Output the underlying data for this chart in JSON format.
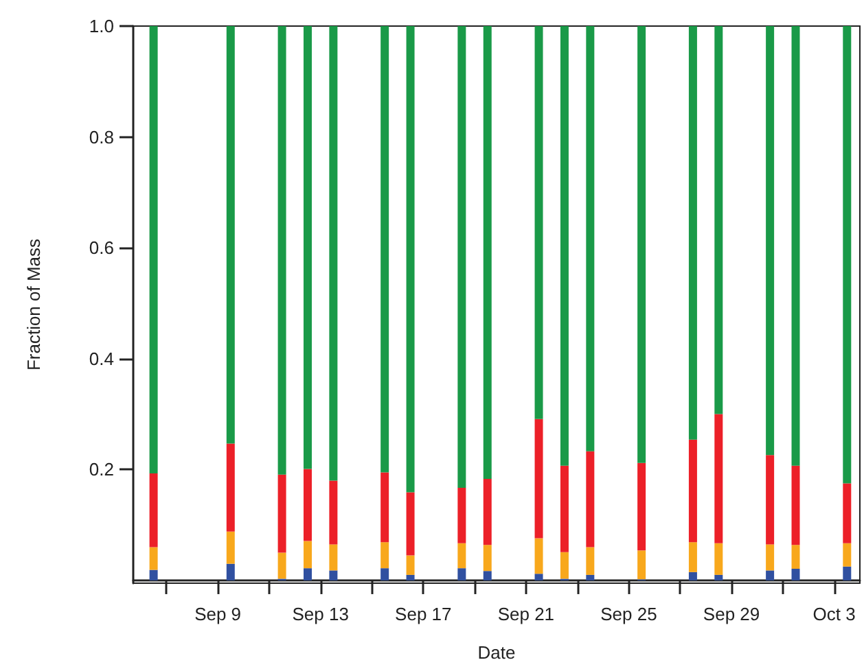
{
  "chart_data": {
    "type": "bar",
    "stacked": true,
    "xlabel": "Date",
    "ylabel": "Fraction of Mass",
    "x": [
      "--09-06T12:00",
      "--09-09T12:00",
      "--09-11T12:00",
      "--09-12T12:00",
      "--09-13T12:00",
      "--09-15T12:00",
      "--09-16T12:00",
      "--09-18T12:00",
      "--09-19T12:00",
      "--09-21T12:00",
      "--09-22T12:00",
      "--09-23T12:00",
      "--09-25T12:00",
      "--09-27T12:00",
      "--09-28T12:00",
      "--09-30T12:00",
      "--10-01T12:00",
      "--10-03T12:00"
    ],
    "series": [
      {
        "color": "#3050a0",
        "values": [
          0.019,
          0.03,
          0.003,
          0.022,
          0.018,
          0.022,
          0.01,
          0.022,
          0.017,
          0.012,
          0.003,
          0.01,
          0.002,
          0.015,
          0.01,
          0.018,
          0.021,
          0.025
        ]
      },
      {
        "color": "#f8a81c",
        "values": [
          0.041,
          0.058,
          0.047,
          0.049,
          0.047,
          0.047,
          0.035,
          0.045,
          0.047,
          0.064,
          0.048,
          0.05,
          0.052,
          0.054,
          0.057,
          0.047,
          0.043,
          0.042
        ]
      },
      {
        "color": "#ec2028",
        "values": [
          0.133,
          0.159,
          0.141,
          0.13,
          0.115,
          0.126,
          0.114,
          0.1,
          0.119,
          0.215,
          0.156,
          0.173,
          0.158,
          0.185,
          0.233,
          0.161,
          0.143,
          0.108
        ]
      },
      {
        "color": "#1a9a48",
        "values": [
          0.807,
          0.753,
          0.809,
          0.799,
          0.82,
          0.805,
          0.841,
          0.833,
          0.817,
          0.709,
          0.793,
          0.767,
          0.788,
          0.746,
          0.7,
          0.774,
          0.793,
          0.825
        ]
      }
    ],
    "xlim": [
      "--09-05T17:00",
      "--10-04T00:00"
    ],
    "xticks": [
      {
        "value": "--09-07",
        "label": null
      },
      {
        "value": "--09-09",
        "label": "Sep 9"
      },
      {
        "value": "--09-11",
        "label": null
      },
      {
        "value": "--09-13",
        "label": "Sep 13"
      },
      {
        "value": "--09-15",
        "label": null
      },
      {
        "value": "--09-17",
        "label": "Sep 17"
      },
      {
        "value": "--09-19",
        "label": null
      },
      {
        "value": "--09-21",
        "label": "Sep 21"
      },
      {
        "value": "--09-23",
        "label": null
      },
      {
        "value": "--09-25",
        "label": "Sep 25"
      },
      {
        "value": "--09-27",
        "label": null
      },
      {
        "value": "--09-29",
        "label": "Sep 29"
      },
      {
        "value": "--10-01",
        "label": null
      },
      {
        "value": "--10-03",
        "label": "Oct 3"
      }
    ],
    "ylim": [
      -0.005,
      1.0
    ],
    "yticks": [
      {
        "value": 0.2,
        "label": "0.2"
      },
      {
        "value": 0.4,
        "label": "0.4"
      },
      {
        "value": 0.6,
        "label": "0.6"
      },
      {
        "value": 0.8,
        "label": "0.8"
      },
      {
        "value": 1.0,
        "label": "1.0"
      }
    ],
    "grid": false
  }
}
